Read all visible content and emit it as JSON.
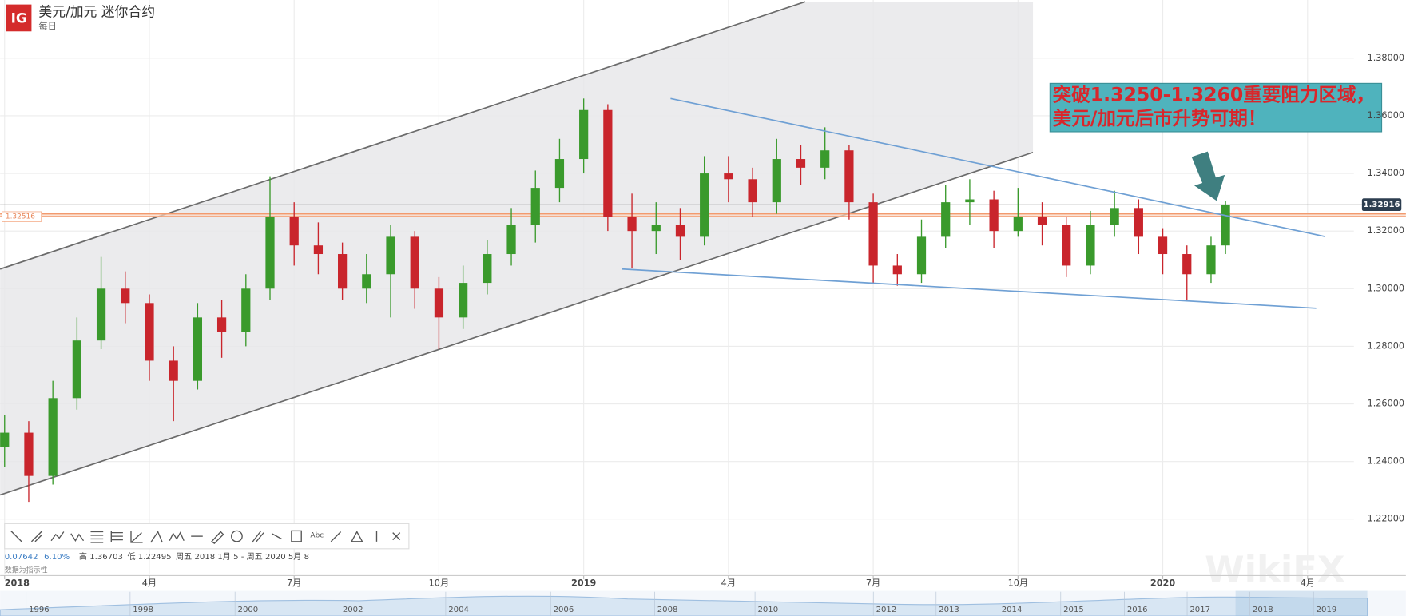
{
  "header": {
    "logo": "IG",
    "title": "美元/加元 迷你合约",
    "subtitle": "每日"
  },
  "chart_data": {
    "type": "candlestick",
    "x": [
      0,
      0.5,
      1,
      1.5,
      2,
      2.5,
      3,
      3.5,
      4,
      4.5,
      5,
      5.5,
      6,
      6.5,
      7,
      7.5,
      8,
      8.5,
      9,
      9.5,
      10,
      10.5,
      11,
      11.5,
      12,
      12.5,
      13,
      13.5,
      14,
      14.5,
      15,
      15.5,
      16,
      16.5,
      17,
      17.5,
      18,
      18.5,
      19,
      19.5,
      20,
      20.5,
      21,
      21.5,
      22,
      22.5,
      23,
      23.5,
      24,
      24.5,
      25,
      25.3
    ],
    "open": [
      1.245,
      1.25,
      1.235,
      1.262,
      1.282,
      1.3,
      1.295,
      1.275,
      1.268,
      1.29,
      1.285,
      1.3,
      1.325,
      1.315,
      1.312,
      1.3,
      1.305,
      1.318,
      1.3,
      1.29,
      1.302,
      1.312,
      1.322,
      1.335,
      1.345,
      1.362,
      1.325,
      1.32,
      1.322,
      1.318,
      1.34,
      1.338,
      1.33,
      1.345,
      1.342,
      1.348,
      1.33,
      1.308,
      1.305,
      1.318,
      1.33,
      1.331,
      1.32,
      1.325,
      1.322,
      1.308,
      1.322,
      1.328,
      1.318,
      1.312,
      1.305,
      1.315
    ],
    "high": [
      1.256,
      1.254,
      1.268,
      1.29,
      1.311,
      1.306,
      1.298,
      1.28,
      1.295,
      1.296,
      1.305,
      1.339,
      1.33,
      1.323,
      1.316,
      1.312,
      1.322,
      1.32,
      1.304,
      1.308,
      1.317,
      1.328,
      1.341,
      1.352,
      1.366,
      1.364,
      1.333,
      1.33,
      1.328,
      1.346,
      1.346,
      1.342,
      1.352,
      1.35,
      1.356,
      1.35,
      1.333,
      1.312,
      1.324,
      1.336,
      1.338,
      1.334,
      1.335,
      1.33,
      1.325,
      1.327,
      1.334,
      1.331,
      1.321,
      1.315,
      1.318,
      1.3305
    ],
    "low": [
      1.238,
      1.226,
      1.232,
      1.258,
      1.279,
      1.288,
      1.268,
      1.254,
      1.265,
      1.276,
      1.28,
      1.296,
      1.308,
      1.305,
      1.296,
      1.295,
      1.29,
      1.293,
      1.279,
      1.286,
      1.298,
      1.308,
      1.316,
      1.33,
      1.34,
      1.32,
      1.307,
      1.312,
      1.31,
      1.315,
      1.33,
      1.325,
      1.326,
      1.336,
      1.338,
      1.324,
      1.302,
      1.301,
      1.302,
      1.314,
      1.322,
      1.314,
      1.318,
      1.315,
      1.304,
      1.305,
      1.318,
      1.312,
      1.305,
      1.296,
      1.302,
      1.312
    ],
    "close": [
      1.25,
      1.235,
      1.262,
      1.282,
      1.3,
      1.295,
      1.275,
      1.268,
      1.29,
      1.285,
      1.3,
      1.325,
      1.315,
      1.312,
      1.3,
      1.305,
      1.318,
      1.3,
      1.29,
      1.302,
      1.312,
      1.322,
      1.335,
      1.345,
      1.362,
      1.325,
      1.32,
      1.322,
      1.318,
      1.34,
      1.338,
      1.33,
      1.345,
      1.342,
      1.348,
      1.33,
      1.308,
      1.305,
      1.318,
      1.33,
      1.331,
      1.32,
      1.325,
      1.322,
      1.308,
      1.322,
      1.328,
      1.318,
      1.312,
      1.305,
      1.315,
      1.32916
    ],
    "up_color": "#3a9a2c",
    "down_color": "#c9252c",
    "xlim": [
      -0.093,
      27.96
    ],
    "xticks": [
      {
        "value": 0,
        "label": "2018"
      },
      {
        "value": 3,
        "label": "4月"
      },
      {
        "value": 6,
        "label": "7月"
      },
      {
        "value": 9,
        "label": "10月"
      },
      {
        "value": 12,
        "label": "2019"
      },
      {
        "value": 15,
        "label": "4月"
      },
      {
        "value": 18,
        "label": "7月"
      },
      {
        "value": 21,
        "label": "10月"
      },
      {
        "value": 24,
        "label": "2020"
      },
      {
        "value": 27,
        "label": "4月"
      }
    ],
    "ylim": [
      1.201,
      1.4002
    ],
    "yticks": [
      {
        "value": 1.22,
        "label": "1.22000"
      },
      {
        "value": 1.24,
        "label": "1.24000"
      },
      {
        "value": 1.26,
        "label": "1.26000"
      },
      {
        "value": 1.28,
        "label": "1.28000"
      },
      {
        "value": 1.3,
        "label": "1.30000"
      },
      {
        "value": 1.32,
        "label": "1.32000"
      },
      {
        "value": 1.34,
        "label": "1.34000"
      },
      {
        "value": 1.36,
        "label": "1.36000"
      },
      {
        "value": 1.38,
        "label": "1.38000"
      }
    ],
    "grid": true,
    "last_price": 1.32916,
    "level_label": 1.32516,
    "zone": [
      1.325,
      1.326
    ],
    "channel": {
      "fill": "#e7e7ea",
      "color": "#6b6b6b",
      "upper": {
        "x": [
          -0.093,
          16.59
        ],
        "y": [
          1.3068,
          1.3996
        ]
      },
      "lower": {
        "x": [
          -0.093,
          21.31
        ],
        "y": [
          1.2284,
          1.3473
        ]
      }
    },
    "trend_lines": [
      {
        "color": "#6fa0d4",
        "x": [
          13.8,
          27.36
        ],
        "y": [
          1.366,
          1.3181
        ]
      },
      {
        "color": "#6fa0d4",
        "x": [
          12.8,
          27.18
        ],
        "y": [
          1.3068,
          1.2932
        ]
      }
    ],
    "annotation": [
      "突破1.3250-1.3260重要阻力区域，",
      "美元/加元后市升势可期！"
    ]
  },
  "toolbar": {
    "text_tool": "Abc"
  },
  "stats": {
    "change": "0.07642",
    "change_pct": "6.10%",
    "high": "高 1.36703",
    "low": "低 1.22495",
    "range": "周五 2018 1月 5 - 周五 2020 5月 8",
    "note": "数据为指示性"
  },
  "navigator": {
    "years": [
      "1996",
      "1998",
      "2000",
      "2002",
      "2004",
      "2006",
      "2008",
      "2010",
      "2012",
      "2013",
      "2014",
      "2015",
      "2016",
      "2017",
      "2018",
      "2019"
    ]
  },
  "watermark": "WikiFX"
}
